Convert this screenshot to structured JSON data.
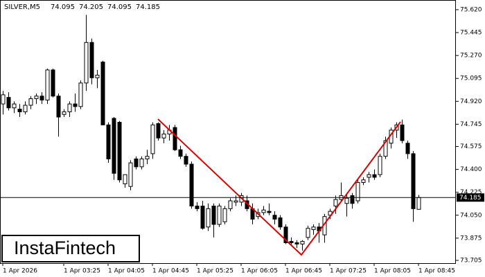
{
  "chart_data": {
    "type": "candlestick",
    "symbol": "SILVER,M5",
    "watermark": "InstaFintech",
    "categories": [
      "1 Apr 2026",
      null,
      null,
      null,
      null,
      null,
      null,
      null,
      null,
      null,
      null,
      "1 Apr 03:25",
      null,
      null,
      null,
      null,
      null,
      null,
      null,
      "1 Apr 04:05",
      null,
      null,
      null,
      null,
      null,
      null,
      null,
      "1 Apr 04:45",
      null,
      null,
      null,
      null,
      null,
      null,
      null,
      "1 Apr 05:25",
      null,
      null,
      null,
      null,
      null,
      null,
      null,
      "1 Apr 06:05",
      null,
      null,
      null,
      null,
      null,
      null,
      null,
      "1 Apr 06:45",
      null,
      null,
      null,
      null,
      null,
      null,
      null,
      "1 Apr 07:25",
      null,
      null,
      null,
      null,
      null,
      null,
      null,
      "1 Apr 08:05",
      null,
      null,
      null,
      null,
      null,
      null,
      null,
      "1 Apr 08:45"
    ],
    "open": [
      74.9,
      74.95,
      74.87,
      74.86,
      74.84,
      74.89,
      74.94,
      74.96,
      74.93,
      75.16,
      74.96,
      74.82,
      74.84,
      74.9,
      74.88,
      75.06,
      75.37,
      75.1,
      75.22,
      74.74,
      74.79,
      74.76,
      74.29,
      74.27,
      74.48,
      74.42,
      74.48,
      74.52,
      74.75,
      74.64,
      74.67,
      74.72,
      74.55,
      74.5,
      74.44,
      74.12,
      74.12,
      73.96,
      74.12,
      73.98,
      74.0,
      74.1,
      74.15,
      74.15,
      74.16,
      74.1,
      74.04,
      74.07,
      74.08,
      74.05,
      74.03,
      73.96,
      73.85,
      73.84,
      73.83,
      73.88,
      73.94,
      73.96,
      73.9,
      74.05,
      74.12,
      74.17,
      74.14,
      74.2,
      74.16,
      74.3,
      74.34,
      74.36,
      74.36,
      74.5,
      74.6,
      74.7,
      74.74,
      74.6,
      74.52,
      74.095
    ],
    "high": [
      75.0,
      74.99,
      74.92,
      74.9,
      74.92,
      74.96,
      74.98,
      74.99,
      75.17,
      75.17,
      74.98,
      74.86,
      74.92,
      74.98,
      75.08,
      75.58,
      75.4,
      75.16,
      75.23,
      74.76,
      74.8,
      74.77,
      74.36,
      74.47,
      74.5,
      74.5,
      74.55,
      74.76,
      74.76,
      74.7,
      74.74,
      74.74,
      74.58,
      74.52,
      74.46,
      74.15,
      74.16,
      74.14,
      74.14,
      74.14,
      74.12,
      74.18,
      74.2,
      74.22,
      74.2,
      74.14,
      74.1,
      74.12,
      74.14,
      74.08,
      74.05,
      73.98,
      73.88,
      73.86,
      73.86,
      73.97,
      73.98,
      73.99,
      74.06,
      74.1,
      74.2,
      74.3,
      74.22,
      74.22,
      74.32,
      74.34,
      74.38,
      74.4,
      74.52,
      74.65,
      74.72,
      74.76,
      74.78,
      74.62,
      74.54,
      74.205
    ],
    "low": [
      74.82,
      74.85,
      74.83,
      74.8,
      74.82,
      74.86,
      74.9,
      74.9,
      74.9,
      74.95,
      74.65,
      74.8,
      74.8,
      74.84,
      74.86,
      75.0,
      75.05,
      75.02,
      74.74,
      74.45,
      74.32,
      74.3,
      74.26,
      74.24,
      74.4,
      74.4,
      74.44,
      74.48,
      74.62,
      74.6,
      74.62,
      74.54,
      74.48,
      74.42,
      74.1,
      74.08,
      73.94,
      73.93,
      73.88,
      73.96,
      73.98,
      74.08,
      74.12,
      74.12,
      74.08,
      73.98,
      74.02,
      74.05,
      74.05,
      73.98,
      73.94,
      73.83,
      73.82,
      73.8,
      73.78,
      73.86,
      73.9,
      73.84,
      73.84,
      74.02,
      74.06,
      74.15,
      74.04,
      74.1,
      74.14,
      74.28,
      74.3,
      74.32,
      74.34,
      74.48,
      74.56,
      74.64,
      74.6,
      74.48,
      74.0,
      74.095
    ],
    "close": [
      74.97,
      74.87,
      74.9,
      74.84,
      74.89,
      74.94,
      74.96,
      74.93,
      75.16,
      74.96,
      74.8,
      74.84,
      74.9,
      74.88,
      75.06,
      75.37,
      75.1,
      75.12,
      74.74,
      74.48,
      74.37,
      74.32,
      74.36,
      74.45,
      74.42,
      74.48,
      74.5,
      74.74,
      74.64,
      74.67,
      74.7,
      74.55,
      74.5,
      74.44,
      74.12,
      74.1,
      73.95,
      74.1,
      73.98,
      74.12,
      74.1,
      74.16,
      74.16,
      74.2,
      74.1,
      74.02,
      74.07,
      74.09,
      74.07,
      74.02,
      73.96,
      73.84,
      73.84,
      73.83,
      73.85,
      73.95,
      73.96,
      73.93,
      74.04,
      74.08,
      74.17,
      74.2,
      74.18,
      74.14,
      74.3,
      74.32,
      74.36,
      74.34,
      74.5,
      74.62,
      74.7,
      74.74,
      74.62,
      74.52,
      74.1,
      74.185
    ],
    "ylim": [
      73.705,
      75.62
    ],
    "yticks": [
      {
        "value": 75.62,
        "label": "75.620"
      },
      75.445,
      {
        "value": 75.27,
        "label": "75.270"
      },
      75.095,
      {
        "value": 74.92,
        "label": "74.920"
      },
      74.745,
      74.575,
      {
        "value": 74.4,
        "label": "74.400"
      },
      74.225,
      {
        "value": 74.05,
        "label": "74.050"
      },
      73.875,
      73.705
    ]
  }
}
